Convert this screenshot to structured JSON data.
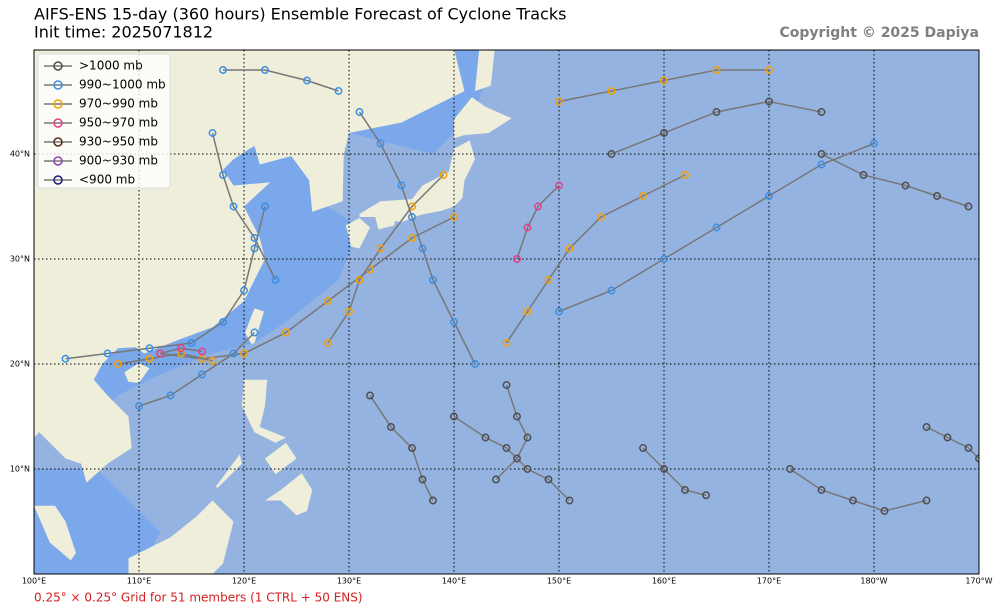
{
  "title": "AIFS-ENS 15-day (360 hours) Ensemble Forecast of Cyclone Tracks",
  "subtitle": "Init time: 2025071812",
  "copyright": "Copyright © 2025 Dapiya",
  "footer": "0.25° × 0.25° Grid for 51 members (1 CTRL + 50 ENS)",
  "map": {
    "lonlim": [
      100,
      190
    ],
    "latlim": [
      0,
      50
    ],
    "lon_ticks": [
      {
        "value": 100,
        "label": "100°E"
      },
      {
        "value": 110,
        "label": "110°E"
      },
      {
        "value": 120,
        "label": "120°E"
      },
      {
        "value": 130,
        "label": "130°E"
      },
      {
        "value": 140,
        "label": "140°E"
      },
      {
        "value": 150,
        "label": "150°E"
      },
      {
        "value": 160,
        "label": "160°E"
      },
      {
        "value": 170,
        "label": "170°E"
      },
      {
        "value": 180,
        "label": "180°W"
      },
      {
        "value": 190,
        "label": "170°W"
      }
    ],
    "lat_ticks": [
      {
        "value": 10,
        "label": "10°N"
      },
      {
        "value": 20,
        "label": "20°N"
      },
      {
        "value": 30,
        "label": "30°N"
      },
      {
        "value": 40,
        "label": "40°N"
      }
    ]
  },
  "legend": [
    {
      "label": ">1000 mb",
      "color": "#4d4d4d"
    },
    {
      "label": "990~1000 mb",
      "color": "#3a8ee6"
    },
    {
      "label": "970~990 mb",
      "color": "#f5a000"
    },
    {
      "label": "950~970 mb",
      "color": "#e0408a"
    },
    {
      "label": "930~950 mb",
      "color": "#5a2a10"
    },
    {
      "label": "900~930 mb",
      "color": "#9040c0"
    },
    {
      "label": "<900 mb",
      "color": "#1a1a80"
    }
  ],
  "tracks": [
    {
      "level": 2,
      "points": [
        [
          112,
          21
        ],
        [
          116,
          20.5
        ],
        [
          120,
          21
        ],
        [
          124,
          23
        ],
        [
          128,
          26
        ],
        [
          132,
          29
        ],
        [
          136,
          32
        ],
        [
          140,
          34
        ]
      ]
    },
    {
      "level": 1,
      "points": [
        [
          103,
          20.5
        ],
        [
          107,
          21
        ],
        [
          111,
          21.5
        ],
        [
          115,
          22
        ],
        [
          118,
          24
        ],
        [
          120,
          27
        ],
        [
          121,
          31
        ],
        [
          122,
          35
        ]
      ]
    },
    {
      "level": 2,
      "points": [
        [
          145,
          22
        ],
        [
          147,
          25
        ],
        [
          149,
          28
        ],
        [
          151,
          31
        ],
        [
          154,
          34
        ],
        [
          158,
          36
        ],
        [
          162,
          38
        ]
      ]
    },
    {
      "level": 0,
      "points": [
        [
          140,
          15
        ],
        [
          143,
          13
        ],
        [
          145,
          12
        ],
        [
          147,
          10
        ],
        [
          149,
          9
        ],
        [
          151,
          7
        ]
      ]
    },
    {
      "level": 0,
      "points": [
        [
          132,
          17
        ],
        [
          134,
          14
        ],
        [
          136,
          12
        ],
        [
          137,
          9
        ],
        [
          138,
          7
        ]
      ]
    },
    {
      "level": 1,
      "points": [
        [
          150,
          25
        ],
        [
          155,
          27
        ],
        [
          160,
          30
        ],
        [
          165,
          33
        ],
        [
          170,
          36
        ],
        [
          175,
          39
        ],
        [
          180,
          41
        ]
      ]
    },
    {
      "level": 0,
      "points": [
        [
          175,
          40
        ],
        [
          179,
          38
        ],
        [
          183,
          37
        ],
        [
          186,
          36
        ],
        [
          189,
          35
        ]
      ]
    },
    {
      "level": 0,
      "points": [
        [
          172,
          10
        ],
        [
          175,
          8
        ],
        [
          178,
          7
        ],
        [
          181,
          6
        ],
        [
          185,
          7
        ]
      ]
    },
    {
      "level": 3,
      "points": [
        [
          146,
          30
        ],
        [
          147,
          33
        ],
        [
          148,
          35
        ],
        [
          150,
          37
        ]
      ]
    },
    {
      "level": 2,
      "points": [
        [
          128,
          22
        ],
        [
          130,
          25
        ],
        [
          131,
          28
        ],
        [
          133,
          31
        ],
        [
          136,
          35
        ],
        [
          139,
          38
        ]
      ]
    },
    {
      "level": 1,
      "points": [
        [
          123,
          28
        ],
        [
          121,
          32
        ],
        [
          119,
          35
        ],
        [
          118,
          38
        ],
        [
          117,
          42
        ]
      ]
    },
    {
      "level": 0,
      "points": [
        [
          185,
          14
        ],
        [
          187,
          13
        ],
        [
          189,
          12
        ],
        [
          190,
          11
        ]
      ]
    },
    {
      "level": 0,
      "points": [
        [
          158,
          12
        ],
        [
          160,
          10
        ],
        [
          162,
          8
        ],
        [
          164,
          7.5
        ]
      ]
    },
    {
      "level": 2,
      "points": [
        [
          108,
          20
        ],
        [
          111,
          20.5
        ],
        [
          114,
          21
        ],
        [
          117,
          20.3
        ]
      ]
    },
    {
      "level": 3,
      "points": [
        [
          112,
          21
        ],
        [
          114,
          21.5
        ],
        [
          116,
          21.2
        ]
      ]
    },
    {
      "level": 1,
      "points": [
        [
          142,
          20
        ],
        [
          140,
          24
        ],
        [
          138,
          28
        ],
        [
          137,
          31
        ],
        [
          136,
          34
        ],
        [
          135,
          37
        ],
        [
          133,
          41
        ],
        [
          131,
          44
        ]
      ]
    },
    {
      "level": 0,
      "points": [
        [
          155,
          40
        ],
        [
          160,
          42
        ],
        [
          165,
          44
        ],
        [
          170,
          45
        ],
        [
          175,
          44
        ]
      ]
    },
    {
      "level": 2,
      "points": [
        [
          150,
          45
        ],
        [
          155,
          46
        ],
        [
          160,
          47
        ],
        [
          165,
          48
        ],
        [
          170,
          48
        ]
      ]
    },
    {
      "level": 1,
      "points": [
        [
          118,
          48
        ],
        [
          122,
          48
        ],
        [
          126,
          47
        ],
        [
          129,
          46
        ]
      ]
    },
    {
      "level": 0,
      "points": [
        [
          145,
          18
        ],
        [
          146,
          15
        ],
        [
          147,
          13
        ],
        [
          146,
          11
        ],
        [
          144,
          9
        ]
      ]
    },
    {
      "level": 1,
      "points": [
        [
          110,
          16
        ],
        [
          113,
          17
        ],
        [
          116,
          19
        ],
        [
          119,
          21
        ],
        [
          121,
          23
        ]
      ]
    }
  ]
}
